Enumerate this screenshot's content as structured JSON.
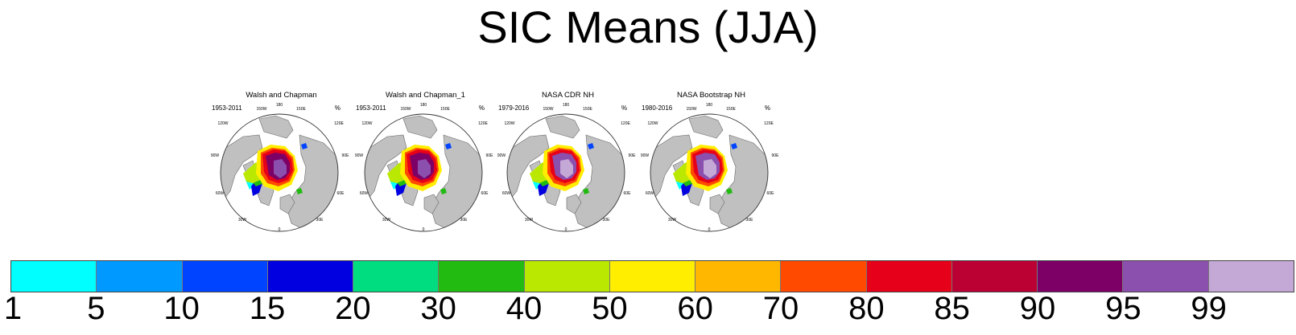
{
  "figure": {
    "title": "SIC Means (JJA)"
  },
  "panels": [
    {
      "title": "Walsh and Chapman",
      "period": "1953-2011",
      "units": "%",
      "variant": "wc"
    },
    {
      "title": "Walsh and Chapman_1",
      "period": "1953-2011",
      "units": "%",
      "variant": "wc"
    },
    {
      "title": "NASA CDR NH",
      "period": "1979-2016",
      "units": "%",
      "variant": "cdr"
    },
    {
      "title": "NASA Bootstrap NH",
      "period": "1980-2016",
      "units": "%",
      "variant": "bs"
    }
  ],
  "map_labels": {
    "longitudes": [
      "180",
      "150W",
      "150E",
      "120W",
      "120E",
      "90W",
      "90E",
      "60W",
      "60E",
      "30W",
      "30E",
      "0"
    ]
  },
  "colors": {
    "land": "#c0c0c0",
    "ocean": "#ffffff",
    "coast": "#6a6a6a"
  },
  "colorbar": {
    "colors": [
      "#00ffff",
      "#0099ff",
      "#0044ff",
      "#0000e0",
      "#00dd80",
      "#22bb11",
      "#bbe800",
      "#ffee00",
      "#ffb700",
      "#ff4a00",
      "#e60019",
      "#bb0033",
      "#7d0066",
      "#8b4fad",
      "#c4a8d6"
    ],
    "labels": [
      "1",
      "5",
      "10",
      "15",
      "20",
      "30",
      "40",
      "50",
      "60",
      "70",
      "80",
      "85",
      "90",
      "95",
      "99"
    ]
  }
}
